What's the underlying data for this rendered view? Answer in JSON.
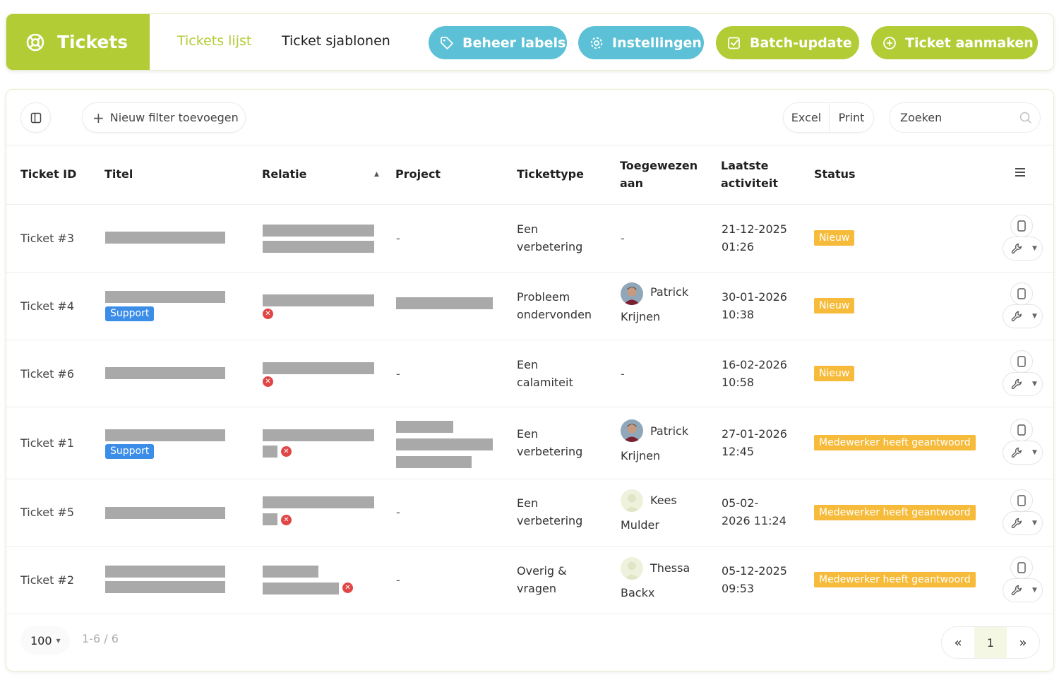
{
  "header": {
    "brand": "Tickets",
    "nav": {
      "list": "Tickets lijst",
      "templates": "Ticket sjablonen"
    },
    "buttons": {
      "labels": "Beheer labels",
      "settings": "Instellingen",
      "batch": "Batch-update",
      "create": "Ticket aanmaken"
    }
  },
  "toolbar": {
    "add_filter": "Nieuw filter toevoegen",
    "excel": "Excel",
    "print": "Print",
    "search_placeholder": "Zoeken"
  },
  "columns": {
    "id": "Ticket ID",
    "title": "Titel",
    "relation": "Relatie",
    "project": "Project",
    "type": "Tickettype",
    "assigned_1": "Toegewezen",
    "assigned_2": "aan",
    "activity_1": "Laatste",
    "activity_2": "activiteit",
    "status": "Status"
  },
  "rows": [
    {
      "id": "Ticket #3",
      "type_1": "Een",
      "type_2": "verbetering",
      "assignee_first": "",
      "assignee_last": "",
      "assignee_dash": "-",
      "project_dash": "-",
      "date": "21-12-2025",
      "time": "01:26",
      "status": "Nieuw",
      "label": ""
    },
    {
      "id": "Ticket #4",
      "type_1": "Probleem",
      "type_2": "ondervonden",
      "assignee_first": "Patrick",
      "assignee_last": "Krijnen",
      "assignee_dash": "",
      "project_dash": "",
      "date": "30-01-2026",
      "time": "10:38",
      "status": "Nieuw",
      "label": "Support"
    },
    {
      "id": "Ticket #6",
      "type_1": "Een",
      "type_2": "calamiteit",
      "assignee_first": "",
      "assignee_last": "",
      "assignee_dash": "-",
      "project_dash": "-",
      "date": "16-02-2026",
      "time": "10:58",
      "status": "Nieuw",
      "label": ""
    },
    {
      "id": "Ticket #1",
      "type_1": "Een",
      "type_2": "verbetering",
      "assignee_first": "Patrick",
      "assignee_last": "Krijnen",
      "assignee_dash": "",
      "project_dash": "",
      "date": "27-01-2026",
      "time": "12:45",
      "status": "Medewerker heeft geantwoord",
      "label": "Support"
    },
    {
      "id": "Ticket #5",
      "type_1": "Een",
      "type_2": "verbetering",
      "assignee_first": "Kees",
      "assignee_last": "Mulder",
      "assignee_dash": "",
      "project_dash": "-",
      "date": "05-02-",
      "time": "2026 11:24",
      "status": "Medewerker heeft geantwoord",
      "label": ""
    },
    {
      "id": "Ticket #2",
      "type_1": "Overig &",
      "type_2": "vragen",
      "assignee_first": "Thessa",
      "assignee_last": "Backx",
      "assignee_dash": "",
      "project_dash": "-",
      "date": "05-12-2025",
      "time": "09:53",
      "status": "Medewerker heeft geantwoord",
      "label": ""
    }
  ],
  "footer": {
    "per_page": "100",
    "range": "1-6 / 6",
    "page": "1",
    "prev": "«",
    "next": "»"
  },
  "colors": {
    "brand_green": "#b1cc35",
    "accent_blue": "#5cc1d6",
    "status_orange": "#f6bb3a",
    "label_blue": "#3b8de8",
    "error_red": "#e04646"
  }
}
